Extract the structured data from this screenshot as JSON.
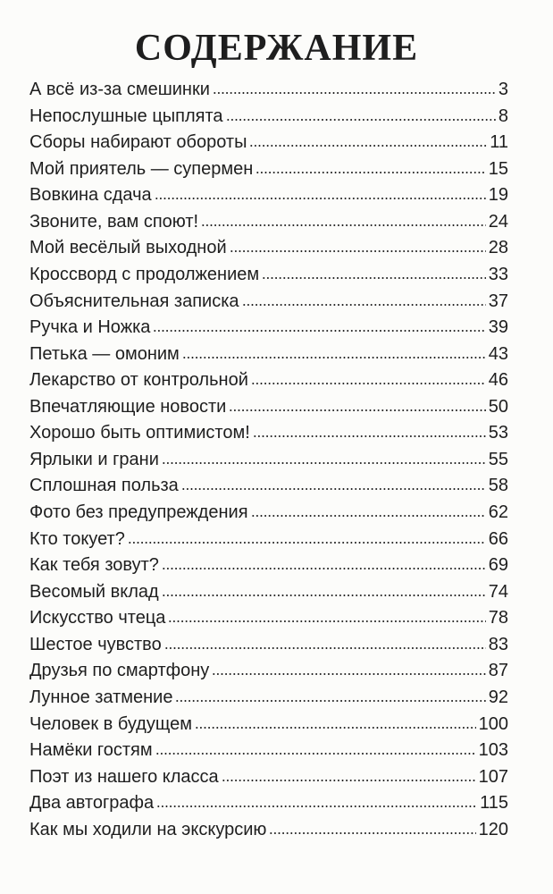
{
  "title": "СОДЕРЖАНИЕ",
  "entries": [
    {
      "title": "А всё из-за смешинки",
      "page": 3
    },
    {
      "title": "Непослушные цыплята",
      "page": 8
    },
    {
      "title": "Сборы набирают обороты",
      "page": 11
    },
    {
      "title": "Мой приятель — супермен",
      "page": 15
    },
    {
      "title": "Вовкина сдача",
      "page": 19
    },
    {
      "title": "Звоните, вам споют!",
      "page": 24
    },
    {
      "title": "Мой весёлый выходной",
      "page": 28
    },
    {
      "title": "Кроссворд с продолжением",
      "page": 33
    },
    {
      "title": "Объяснительная записка",
      "page": 37
    },
    {
      "title": "Ручка и Ножка",
      "page": 39
    },
    {
      "title": "Петька — омоним",
      "page": 43
    },
    {
      "title": "Лекарство от контрольной",
      "page": 46
    },
    {
      "title": "Впечатляющие новости",
      "page": 50
    },
    {
      "title": "Хорошо быть оптимистом!",
      "page": 53
    },
    {
      "title": "Ярлыки и грани",
      "page": 55
    },
    {
      "title": "Сплошная польза",
      "page": 58
    },
    {
      "title": "Фото без предупреждения",
      "page": 62
    },
    {
      "title": "Кто токует?",
      "page": 66
    },
    {
      "title": "Как тебя зовут?",
      "page": 69
    },
    {
      "title": "Весомый вклад",
      "page": 74
    },
    {
      "title": "Искусство чтеца",
      "page": 78
    },
    {
      "title": "Шестое чувство",
      "page": 83
    },
    {
      "title": "Друзья по смартфону",
      "page": 87
    },
    {
      "title": "Лунное затмение",
      "page": 92
    },
    {
      "title": "Человек в будущем",
      "page": 100
    },
    {
      "title": "Намёки гостям",
      "page": 103
    },
    {
      "title": "Поэт из нашего класса",
      "page": 107
    },
    {
      "title": "Два автографа",
      "page": 115
    },
    {
      "title": "Как мы ходили на экскурсию",
      "page": 120
    }
  ]
}
